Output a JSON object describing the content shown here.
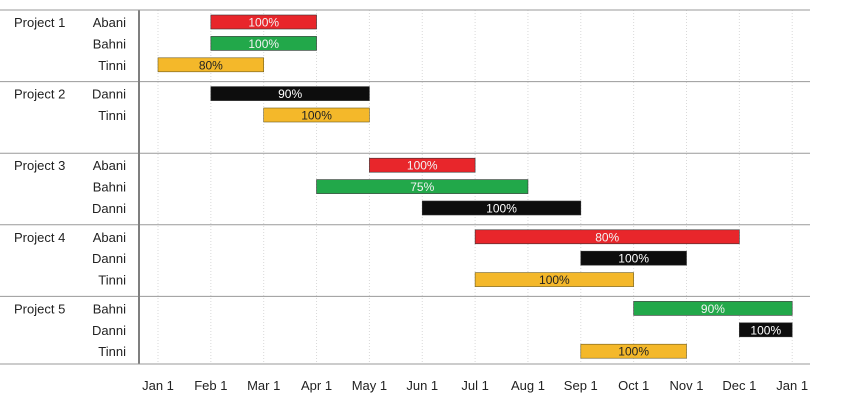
{
  "chart_data": {
    "type": "gantt",
    "x_ticks": [
      "Jan 1",
      "Feb 1",
      "Mar 1",
      "Apr 1",
      "May 1",
      "Jun 1",
      "Jul 1",
      "Aug 1",
      "Sep 1",
      "Oct 1",
      "Nov 1",
      "Dec 1",
      "Jan 1"
    ],
    "colors": {
      "Abani": "#e8262b",
      "Bahni": "#22a84a",
      "Tinni": "#f4b82a",
      "Danni": "#0d0d0d"
    },
    "projects": [
      {
        "name": "Project 1",
        "tasks": [
          {
            "person": "Abani",
            "start": "Feb 1",
            "end": "Apr 1",
            "label": "100%"
          },
          {
            "person": "Bahni",
            "start": "Feb 1",
            "end": "Apr 1",
            "label": "100%"
          },
          {
            "person": "Tinni",
            "start": "Jan 1",
            "end": "Mar 1",
            "label": "80%"
          }
        ]
      },
      {
        "name": "Project 2",
        "tasks": [
          {
            "person": "Danni",
            "start": "Feb 1",
            "end": "May 1",
            "label": "90%"
          },
          {
            "person": "Tinni",
            "start": "Mar 1",
            "end": "May 1",
            "label": "100%"
          }
        ]
      },
      {
        "name": "Project 3",
        "tasks": [
          {
            "person": "Abani",
            "start": "May 1",
            "end": "Jul 1",
            "label": "100%"
          },
          {
            "person": "Bahni",
            "start": "Apr 1",
            "end": "Aug 1",
            "label": "75%"
          },
          {
            "person": "Danni",
            "start": "Jun 1",
            "end": "Sep 1",
            "label": "100%"
          }
        ]
      },
      {
        "name": "Project 4",
        "tasks": [
          {
            "person": "Abani",
            "start": "Jul 1",
            "end": "Dec 1",
            "label": "80%"
          },
          {
            "person": "Danni",
            "start": "Sep 1",
            "end": "Nov 1",
            "label": "100%"
          },
          {
            "person": "Tinni",
            "start": "Jul 1",
            "end": "Oct 1",
            "label": "100%"
          }
        ]
      },
      {
        "name": "Project 5",
        "tasks": [
          {
            "person": "Bahni",
            "start": "Oct 1",
            "end": "Jan 1",
            "label": "90%"
          },
          {
            "person": "Danni",
            "start": "Dec 1",
            "end": "Jan 1",
            "label": "100%"
          },
          {
            "person": "Tinni",
            "start": "Sep 1",
            "end": "Nov 1",
            "label": "100%"
          }
        ]
      }
    ]
  }
}
